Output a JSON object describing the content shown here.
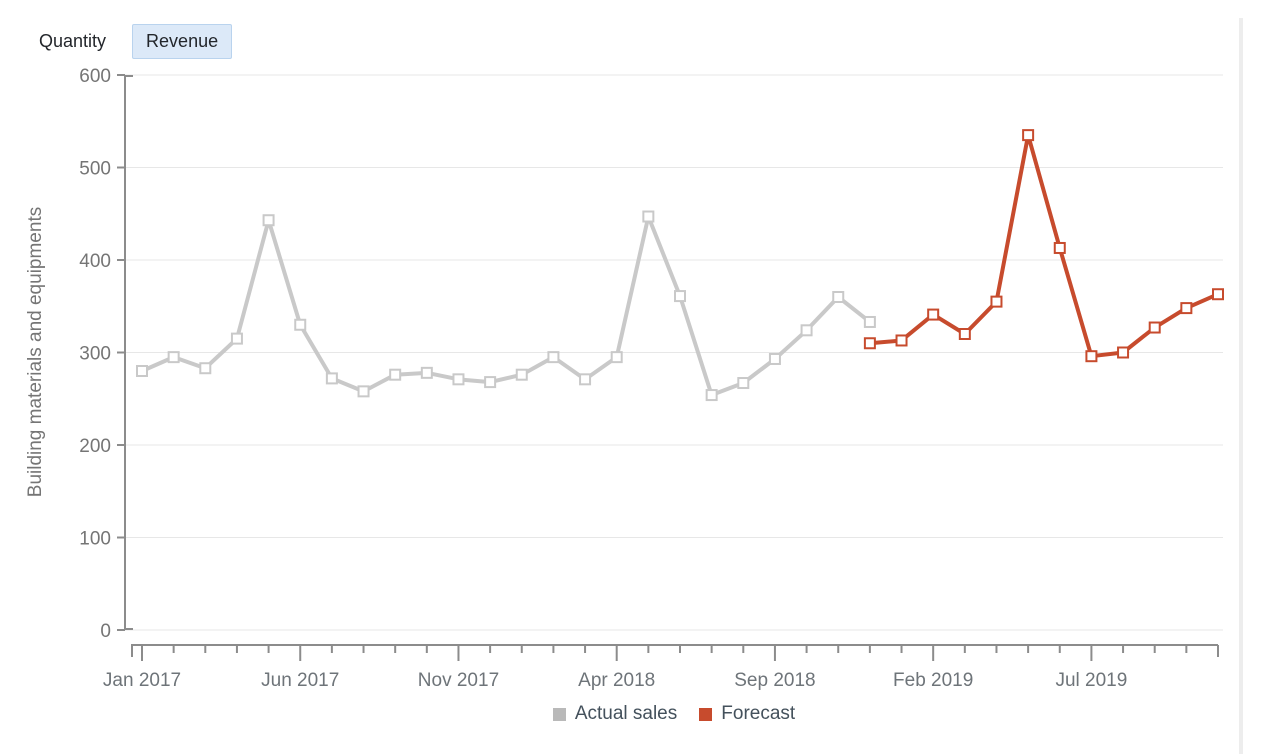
{
  "tabs": {
    "quantity": "Quantity",
    "revenue": "Revenue"
  },
  "colors": {
    "actual_line": "#c9c9c9",
    "actual_legend": "#b9b9b9",
    "forecast_line": "#c74b2d",
    "forecast_legend": "#c74b2d",
    "axis": "#8c8c8c",
    "grid": "#e7e7e7",
    "y_label_text": "#757575",
    "x_label_text": "#6e7479",
    "legend_text": "#44515c",
    "selected_tab_bg": "#dce9f8",
    "selected_tab_border": "#b9d3ee",
    "marker_fill": "#ffffff"
  },
  "chart_data": {
    "type": "line",
    "title": "",
    "y_axis_title": "Building materials and equipments",
    "ylim": [
      0,
      600
    ],
    "y_ticks": [
      0,
      100,
      200,
      300,
      400,
      500,
      600
    ],
    "grid": "horizontal-only",
    "legend_position": "bottom-center",
    "months_total": 35,
    "x_start_month": "Jan 2017",
    "x_end_month": "Nov 2019",
    "x_tick_labels": [
      {
        "label": "Jan 2017",
        "month_index": 0
      },
      {
        "label": "Jun 2017",
        "month_index": 5
      },
      {
        "label": "Nov 2017",
        "month_index": 10
      },
      {
        "label": "Apr 2018",
        "month_index": 15
      },
      {
        "label": "Sep 2018",
        "month_index": 20
      },
      {
        "label": "Feb 2019",
        "month_index": 25
      },
      {
        "label": "Jul 2019",
        "month_index": 30
      }
    ],
    "series": [
      {
        "name": "Actual sales",
        "color_key": "actual_line",
        "legend_color_key": "actual_legend",
        "start_index": 0,
        "months": [
          "Jan 2017",
          "Feb 2017",
          "Mar 2017",
          "Apr 2017",
          "May 2017",
          "Jun 2017",
          "Jul 2017",
          "Aug 2017",
          "Sep 2017",
          "Oct 2017",
          "Nov 2017",
          "Dec 2017",
          "Jan 2018",
          "Feb 2018",
          "Mar 2018",
          "Apr 2018",
          "May 2018",
          "Jun 2018",
          "Jul 2018",
          "Aug 2018",
          "Sep 2018",
          "Oct 2018",
          "Nov 2018",
          "Dec 2018"
        ],
        "values": [
          280,
          295,
          283,
          315,
          443,
          330,
          272,
          258,
          276,
          278,
          271,
          268,
          276,
          295,
          271,
          295,
          447,
          361,
          254,
          267,
          293,
          324,
          360,
          333
        ]
      },
      {
        "name": "Forecast",
        "color_key": "forecast_line",
        "legend_color_key": "forecast_legend",
        "start_index": 23,
        "months": [
          "Dec 2018",
          "Jan 2019",
          "Feb 2019",
          "Mar 2019",
          "Apr 2019",
          "May 2019",
          "Jun 2019",
          "Jul 2019",
          "Aug 2019",
          "Sep 2019",
          "Oct 2019",
          "Nov 2019"
        ],
        "values": [
          310,
          313,
          341,
          320,
          355,
          535,
          413,
          296,
          300,
          327,
          348,
          363
        ]
      }
    ]
  }
}
